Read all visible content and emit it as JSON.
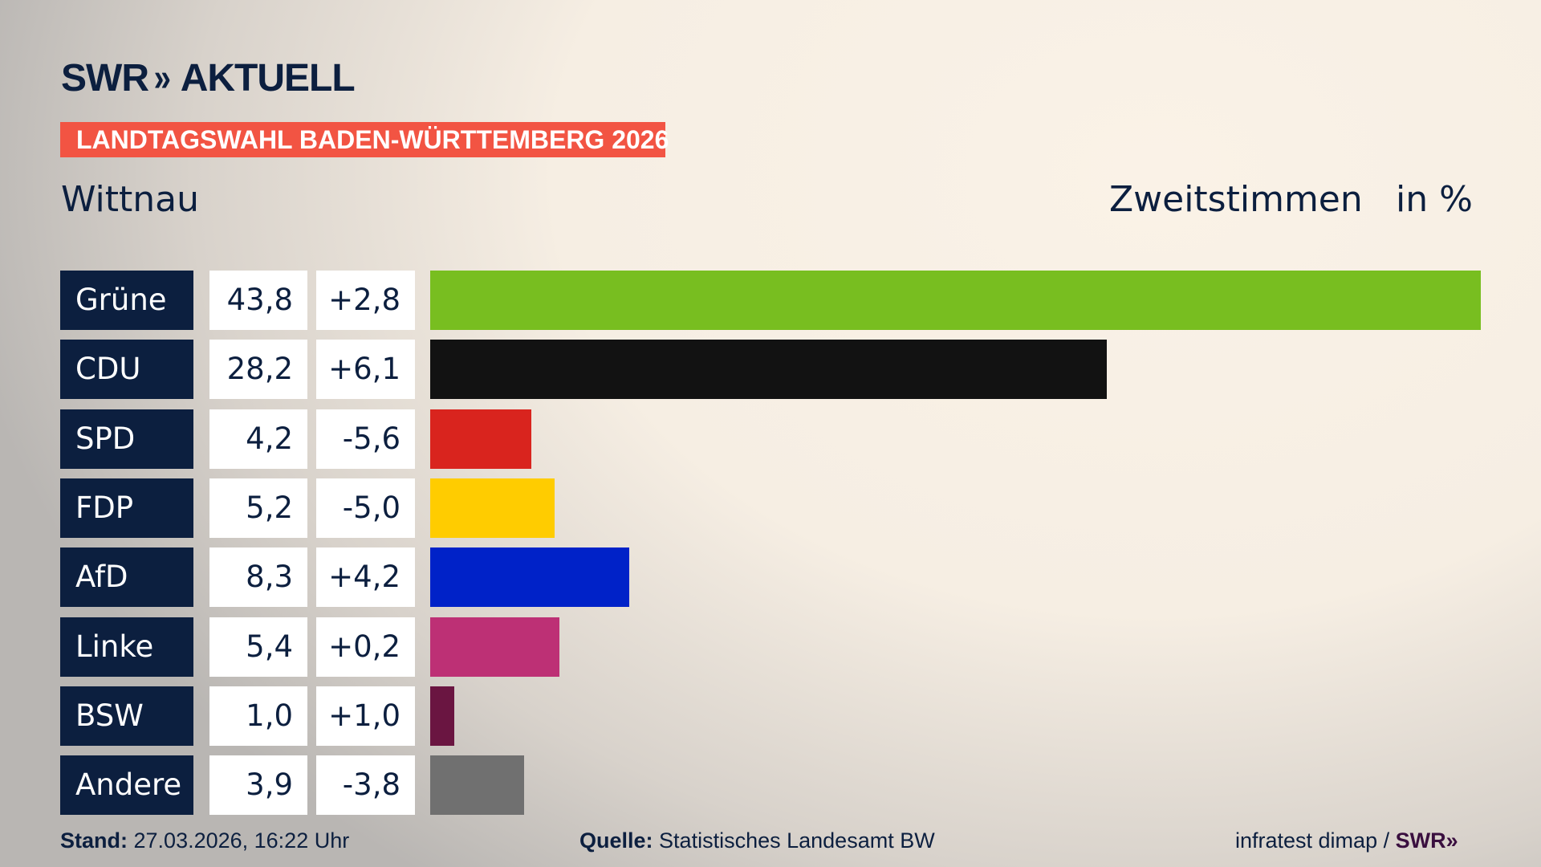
{
  "header": {
    "logo_text": "SWR",
    "logo_chevrons": "»",
    "logo_suffix": "AKTUELL",
    "banner": "LANDTAGSWAHL BADEN-WÜRTTEMBERG 2026",
    "region": "Wittnau",
    "measure": "Zweitstimmen",
    "unit": "in %"
  },
  "chart_data": {
    "type": "bar",
    "orientation": "horizontal",
    "categories": [
      "Grüne",
      "CDU",
      "SPD",
      "FDP",
      "AfD",
      "Linke",
      "BSW",
      "Andere"
    ],
    "values": [
      43.8,
      28.2,
      4.2,
      5.2,
      8.3,
      5.4,
      1.0,
      3.9
    ],
    "value_labels": [
      "43,8",
      "28,2",
      "4,2",
      "5,2",
      "8,3",
      "5,4",
      "1,0",
      "3,9"
    ],
    "changes": [
      2.8,
      6.1,
      -5.6,
      -5.0,
      4.2,
      0.2,
      1.0,
      -3.8
    ],
    "change_labels": [
      "+2,8",
      "+6,1",
      "-5,6",
      "-5,0",
      "+4,2",
      "+0,2",
      "+1,0",
      "-3,8"
    ],
    "colors": [
      "#78be20",
      "#121212",
      "#d9241e",
      "#ffcc00",
      "#0022c8",
      "#bd3075",
      "#6a1541",
      "#707070"
    ],
    "xlim": [
      0,
      43.8
    ],
    "grid": false
  },
  "footer": {
    "stand_label": "Stand:",
    "stand_value": "27.03.2026, 16:22 Uhr",
    "source_label": "Quelle:",
    "source_value": "Statistisches Landesamt BW",
    "credit": "infratest dimap /",
    "credit_logo": "SWR»"
  }
}
